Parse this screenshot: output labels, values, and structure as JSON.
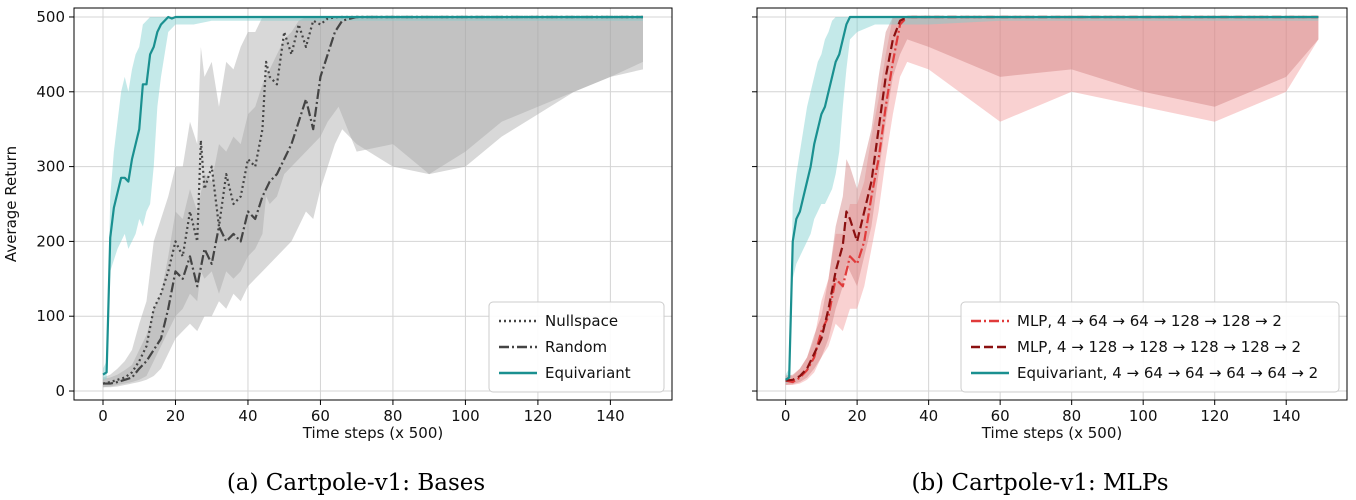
{
  "colors": {
    "nullspace": "#444444",
    "random": "#444444",
    "equivariant": "#1a9090",
    "equivariant_band": "#7ccfcf",
    "gray_band": "#a8a8a8",
    "mlp1": "#e03a3a",
    "mlp1_band": "#f19a9a",
    "mlp2": "#8b1010",
    "mlp2_band": "#d08080"
  },
  "chart_data": [
    {
      "type": "line",
      "id": "bases",
      "caption": "(a) Cartpole-v1: Bases",
      "xlabel": "Time steps (x 500)",
      "ylabel": "Average Return",
      "xlim": [
        -8,
        157
      ],
      "ylim": [
        -12,
        512
      ],
      "xticks": [
        0,
        20,
        40,
        60,
        80,
        100,
        120,
        140
      ],
      "yticks": [
        0,
        100,
        200,
        300,
        400,
        500
      ],
      "grid": true,
      "legend_position": "bottom-right",
      "series": [
        {
          "name": "Nullspace",
          "style": "dotted",
          "color_key": "nullspace",
          "x": [
            0,
            2,
            4,
            6,
            8,
            10,
            12,
            14,
            16,
            18,
            20,
            22,
            24,
            26,
            27,
            28,
            30,
            32,
            34,
            36,
            38,
            40,
            42,
            44,
            45,
            46,
            48,
            50,
            52,
            54,
            56,
            58,
            60,
            62,
            65,
            70,
            80,
            90,
            100,
            110,
            120,
            130,
            140,
            149
          ],
          "y": [
            10,
            12,
            15,
            18,
            25,
            40,
            60,
            110,
            130,
            160,
            200,
            180,
            240,
            200,
            335,
            270,
            300,
            220,
            290,
            250,
            260,
            310,
            300,
            350,
            440,
            420,
            410,
            480,
            450,
            490,
            460,
            495,
            490,
            498,
            500,
            500,
            500,
            500,
            500,
            500,
            500,
            500,
            500,
            500
          ],
          "band_lower": [
            5,
            6,
            8,
            10,
            12,
            15,
            20,
            40,
            60,
            80,
            100,
            110,
            130,
            120,
            160,
            150,
            160,
            130,
            160,
            150,
            160,
            180,
            190,
            210,
            260,
            250,
            260,
            290,
            300,
            310,
            320,
            330,
            340,
            360,
            380,
            320,
            330,
            290,
            320,
            360,
            380,
            400,
            420,
            430
          ],
          "band_upper": [
            18,
            22,
            30,
            40,
            55,
            90,
            120,
            200,
            230,
            260,
            300,
            300,
            360,
            330,
            460,
            420,
            440,
            380,
            440,
            430,
            460,
            480,
            480,
            500,
            500,
            500,
            500,
            500,
            500,
            500,
            500,
            500,
            500,
            500,
            500,
            500,
            500,
            500,
            500,
            500,
            500,
            500,
            500,
            500
          ]
        },
        {
          "name": "Random",
          "style": "dashdot",
          "color_key": "random",
          "x": [
            0,
            2,
            4,
            6,
            8,
            10,
            12,
            14,
            16,
            18,
            20,
            22,
            24,
            26,
            28,
            30,
            32,
            34,
            36,
            38,
            40,
            42,
            44,
            46,
            48,
            50,
            52,
            54,
            56,
            58,
            60,
            62,
            64,
            66,
            70,
            80,
            90,
            100,
            110,
            120,
            130,
            140,
            149
          ],
          "y": [
            10,
            10,
            12,
            15,
            18,
            30,
            40,
            55,
            70,
            110,
            160,
            150,
            180,
            140,
            190,
            170,
            220,
            200,
            210,
            200,
            240,
            230,
            260,
            280,
            290,
            310,
            330,
            360,
            390,
            350,
            420,
            450,
            480,
            495,
            500,
            500,
            500,
            500,
            500,
            500,
            500,
            500,
            500
          ],
          "band_lower": [
            5,
            5,
            6,
            8,
            10,
            12,
            15,
            20,
            30,
            50,
            70,
            80,
            90,
            80,
            100,
            100,
            120,
            110,
            130,
            120,
            140,
            150,
            160,
            170,
            180,
            190,
            200,
            220,
            240,
            230,
            270,
            300,
            330,
            350,
            330,
            300,
            290,
            300,
            340,
            370,
            400,
            420,
            440
          ],
          "band_upper": [
            16,
            18,
            22,
            28,
            35,
            55,
            75,
            110,
            130,
            180,
            240,
            230,
            270,
            240,
            290,
            280,
            330,
            320,
            340,
            330,
            370,
            380,
            410,
            430,
            450,
            470,
            480,
            495,
            500,
            500,
            500,
            500,
            500,
            500,
            500,
            500,
            500,
            500,
            500,
            500,
            500,
            500,
            500
          ]
        },
        {
          "name": "Equivariant",
          "style": "solid",
          "color_key": "equivariant",
          "x": [
            0,
            1,
            2,
            3,
            4,
            5,
            6,
            7,
            8,
            9,
            10,
            11,
            12,
            13,
            14,
            15,
            16,
            17,
            18,
            19,
            20,
            25,
            30,
            40,
            60,
            80,
            100,
            120,
            140,
            149
          ],
          "y": [
            22,
            25,
            205,
            245,
            265,
            285,
            285,
            280,
            310,
            330,
            350,
            410,
            410,
            450,
            460,
            480,
            490,
            495,
            500,
            498,
            500,
            500,
            500,
            500,
            500,
            500,
            500,
            500,
            500,
            500
          ],
          "band_lower": [
            15,
            16,
            160,
            175,
            190,
            200,
            210,
            190,
            200,
            210,
            230,
            220,
            240,
            250,
            300,
            380,
            420,
            450,
            480,
            485,
            490,
            490,
            495,
            495,
            495,
            495,
            495,
            495,
            495,
            495
          ],
          "band_upper": [
            30,
            40,
            260,
            320,
            360,
            400,
            420,
            400,
            430,
            450,
            460,
            490,
            495,
            500,
            500,
            500,
            500,
            500,
            500,
            500,
            500,
            500,
            500,
            500,
            500,
            500,
            500,
            500,
            500,
            500
          ]
        }
      ]
    },
    {
      "type": "line",
      "id": "mlps",
      "caption": "(b) Cartpole-v1: MLPs",
      "xlabel": "Time steps (x 500)",
      "ylabel": "",
      "xlim": [
        -8,
        157
      ],
      "ylim": [
        -12,
        512
      ],
      "xticks": [
        0,
        20,
        40,
        60,
        80,
        100,
        120,
        140
      ],
      "yticks": [
        0,
        100,
        200,
        300,
        400,
        500
      ],
      "grid": true,
      "legend_position": "bottom-right",
      "series": [
        {
          "name": "MLP, 4 → 64 → 64 → 128 → 128 → 2",
          "style": "dashdot",
          "color_key": "mlp1",
          "x": [
            0,
            2,
            4,
            6,
            8,
            10,
            12,
            14,
            16,
            18,
            20,
            22,
            24,
            26,
            28,
            30,
            32,
            34,
            40,
            60,
            80,
            100,
            120,
            140,
            149
          ],
          "y": [
            14,
            12,
            18,
            28,
            45,
            80,
            100,
            150,
            140,
            180,
            170,
            200,
            260,
            310,
            380,
            440,
            490,
            500,
            500,
            500,
            500,
            500,
            500,
            500,
            500
          ],
          "band_lower": [
            8,
            8,
            10,
            15,
            25,
            45,
            60,
            90,
            80,
            110,
            110,
            140,
            190,
            240,
            310,
            370,
            420,
            440,
            430,
            360,
            400,
            380,
            360,
            400,
            470
          ],
          "band_upper": [
            22,
            20,
            30,
            45,
            70,
            120,
            150,
            210,
            210,
            250,
            250,
            280,
            340,
            390,
            450,
            500,
            500,
            500,
            500,
            500,
            500,
            500,
            500,
            500,
            500
          ]
        },
        {
          "name": "MLP, 4 → 128 → 128 → 128 → 128 → 2",
          "style": "dashed",
          "color_key": "mlp2",
          "x": [
            0,
            2,
            4,
            6,
            8,
            10,
            12,
            14,
            16,
            17,
            18,
            20,
            22,
            24,
            26,
            28,
            30,
            32,
            34,
            40,
            60,
            80,
            100,
            120,
            140,
            149
          ],
          "y": [
            14,
            15,
            20,
            30,
            50,
            70,
            110,
            160,
            195,
            240,
            230,
            200,
            240,
            280,
            350,
            420,
            470,
            495,
            500,
            500,
            500,
            500,
            500,
            500,
            500,
            500
          ],
          "band_lower": [
            8,
            9,
            12,
            18,
            30,
            45,
            70,
            110,
            140,
            170,
            160,
            140,
            180,
            220,
            290,
            360,
            420,
            450,
            470,
            460,
            420,
            430,
            400,
            380,
            420,
            470
          ],
          "band_upper": [
            20,
            22,
            30,
            45,
            75,
            100,
            150,
            220,
            260,
            310,
            300,
            270,
            310,
            350,
            420,
            480,
            500,
            500,
            500,
            500,
            500,
            500,
            500,
            500,
            500,
            500
          ]
        },
        {
          "name": "Equivariant, 4 → 64 → 64 → 64 → 64 → 2",
          "style": "solid",
          "color_key": "equivariant",
          "x": [
            0,
            1,
            2,
            3,
            4,
            5,
            6,
            7,
            8,
            9,
            10,
            11,
            12,
            13,
            14,
            15,
            16,
            17,
            18,
            20,
            25,
            30,
            40,
            60,
            80,
            100,
            120,
            140,
            149
          ],
          "y": [
            15,
            18,
            200,
            230,
            240,
            260,
            280,
            300,
            330,
            350,
            370,
            380,
            400,
            420,
            440,
            450,
            470,
            490,
            500,
            500,
            500,
            500,
            500,
            500,
            500,
            500,
            500,
            500,
            500
          ],
          "band_lower": [
            10,
            12,
            150,
            170,
            180,
            190,
            200,
            210,
            230,
            240,
            250,
            250,
            260,
            270,
            290,
            320,
            380,
            430,
            470,
            480,
            490,
            490,
            490,
            495,
            495,
            495,
            495,
            495,
            495
          ],
          "band_upper": [
            22,
            30,
            250,
            290,
            320,
            350,
            380,
            400,
            420,
            440,
            450,
            470,
            480,
            495,
            500,
            500,
            500,
            500,
            500,
            500,
            500,
            500,
            500,
            500,
            500,
            500,
            500,
            500,
            500
          ]
        }
      ]
    }
  ]
}
